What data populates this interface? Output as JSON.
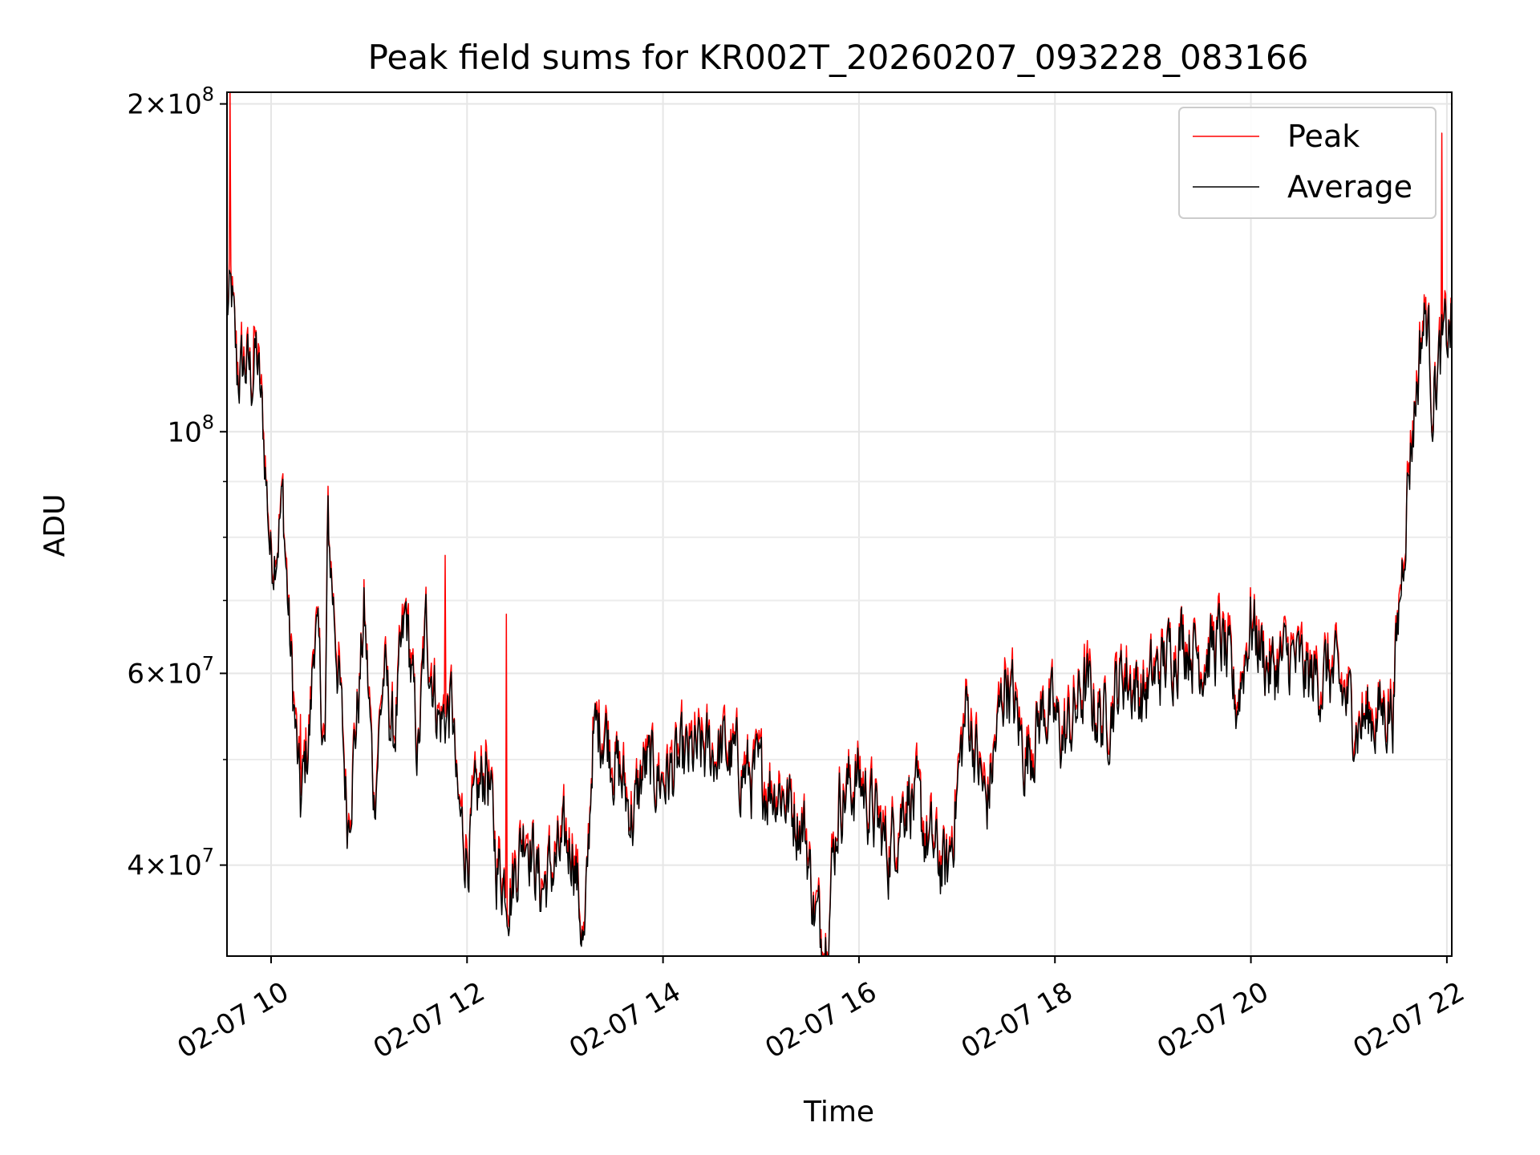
{
  "chart_data": {
    "type": "line",
    "title": "Peak field sums for KR002T_20260207_093228_083166",
    "xlabel": "Time",
    "ylabel": "ADU",
    "yscale": "log",
    "ylim": [
      33000000,
      205000000
    ],
    "xlim_hours": [
      9.55,
      22.05
    ],
    "grid": true,
    "legend_position": "top-right",
    "x_ticks": [
      {
        "hour": 10,
        "label": "02-07 10"
      },
      {
        "hour": 12,
        "label": "02-07 12"
      },
      {
        "hour": 14,
        "label": "02-07 14"
      },
      {
        "hour": 16,
        "label": "02-07 16"
      },
      {
        "hour": 18,
        "label": "02-07 18"
      },
      {
        "hour": 20,
        "label": "02-07 20"
      },
      {
        "hour": 22,
        "label": "02-07 22"
      }
    ],
    "y_ticks": [
      {
        "value": 40000000,
        "mant": "4",
        "exp": "7"
      },
      {
        "value": 60000000,
        "mant": "6",
        "exp": "7"
      },
      {
        "value": 100000000,
        "mant": "",
        "exp": "8"
      },
      {
        "value": 200000000,
        "mant": "2",
        "exp": "8"
      }
    ],
    "y_minor_ticks": [
      50000000,
      70000000,
      80000000,
      90000000
    ],
    "series": [
      {
        "name": "Peak",
        "color": "#ff0000",
        "spikes": [
          {
            "hour": 9.58,
            "value": 205000000
          },
          {
            "hour": 9.82,
            "value": 125000000
          },
          {
            "hour": 10.3,
            "value": 55000000
          },
          {
            "hour": 11.58,
            "value": 72000000
          },
          {
            "hour": 11.78,
            "value": 77000000
          },
          {
            "hour": 12.1,
            "value": 49000000
          },
          {
            "hour": 12.4,
            "value": 68000000
          },
          {
            "hour": 21.95,
            "value": 188000000
          }
        ]
      },
      {
        "name": "Average",
        "color": "#000000",
        "keypoints": [
          [
            9.56,
            130000000
          ],
          [
            9.6,
            132000000
          ],
          [
            9.65,
            112000000
          ],
          [
            9.75,
            115000000
          ],
          [
            9.8,
            112000000
          ],
          [
            9.85,
            118000000
          ],
          [
            9.92,
            100000000
          ],
          [
            10.0,
            76000000
          ],
          [
            10.12,
            86000000
          ],
          [
            10.2,
            62000000
          ],
          [
            10.3,
            45000000
          ],
          [
            10.4,
            54000000
          ],
          [
            10.45,
            68000000
          ],
          [
            10.55,
            50000000
          ],
          [
            10.58,
            82000000
          ],
          [
            10.7,
            58000000
          ],
          [
            10.78,
            44000000
          ],
          [
            10.9,
            58000000
          ],
          [
            10.95,
            68000000
          ],
          [
            11.05,
            46000000
          ],
          [
            11.15,
            60000000
          ],
          [
            11.25,
            52000000
          ],
          [
            11.38,
            68000000
          ],
          [
            11.5,
            50000000
          ],
          [
            11.58,
            66000000
          ],
          [
            11.72,
            54000000
          ],
          [
            11.85,
            56000000
          ],
          [
            11.9,
            45000000
          ],
          [
            12.0,
            41000000
          ],
          [
            12.2,
            50000000
          ],
          [
            12.3,
            40000000
          ],
          [
            12.45,
            38000000
          ],
          [
            12.6,
            44000000
          ],
          [
            12.75,
            38000000
          ],
          [
            12.9,
            40000000
          ],
          [
            13.08,
            42000000
          ],
          [
            13.2,
            33000000
          ],
          [
            13.28,
            52000000
          ],
          [
            13.4,
            54000000
          ],
          [
            13.5,
            50000000
          ],
          [
            13.7,
            44000000
          ],
          [
            13.8,
            49000000
          ],
          [
            14.0,
            48000000
          ],
          [
            14.3,
            50000000
          ],
          [
            14.6,
            51000000
          ],
          [
            14.9,
            48000000
          ],
          [
            15.2,
            47000000
          ],
          [
            15.45,
            43000000
          ],
          [
            15.55,
            36000000
          ],
          [
            15.65,
            34000000
          ],
          [
            15.8,
            46000000
          ],
          [
            16.0,
            48000000
          ],
          [
            16.3,
            41000000
          ],
          [
            16.5,
            47000000
          ],
          [
            16.7,
            42000000
          ],
          [
            16.9,
            39000000
          ],
          [
            17.1,
            56000000
          ],
          [
            17.3,
            45000000
          ],
          [
            17.5,
            60000000
          ],
          [
            17.7,
            50000000
          ],
          [
            17.9,
            56000000
          ],
          [
            18.1,
            52000000
          ],
          [
            18.3,
            58000000
          ],
          [
            18.5,
            54000000
          ],
          [
            18.7,
            60000000
          ],
          [
            18.9,
            57000000
          ],
          [
            19.1,
            61000000
          ],
          [
            19.3,
            65000000
          ],
          [
            19.5,
            62000000
          ],
          [
            19.7,
            64000000
          ],
          [
            19.85,
            56000000
          ],
          [
            20.0,
            67000000
          ],
          [
            20.2,
            60000000
          ],
          [
            20.4,
            62000000
          ],
          [
            20.6,
            59000000
          ],
          [
            20.8,
            60000000
          ],
          [
            20.95,
            57000000
          ],
          [
            21.1,
            54000000
          ],
          [
            21.3,
            55000000
          ],
          [
            21.45,
            56000000
          ],
          [
            21.52,
            70000000
          ],
          [
            21.6,
            90000000
          ],
          [
            21.75,
            125000000
          ],
          [
            21.8,
            127000000
          ],
          [
            21.85,
            108000000
          ],
          [
            21.95,
            118000000
          ],
          [
            22.05,
            126000000
          ]
        ]
      }
    ]
  }
}
